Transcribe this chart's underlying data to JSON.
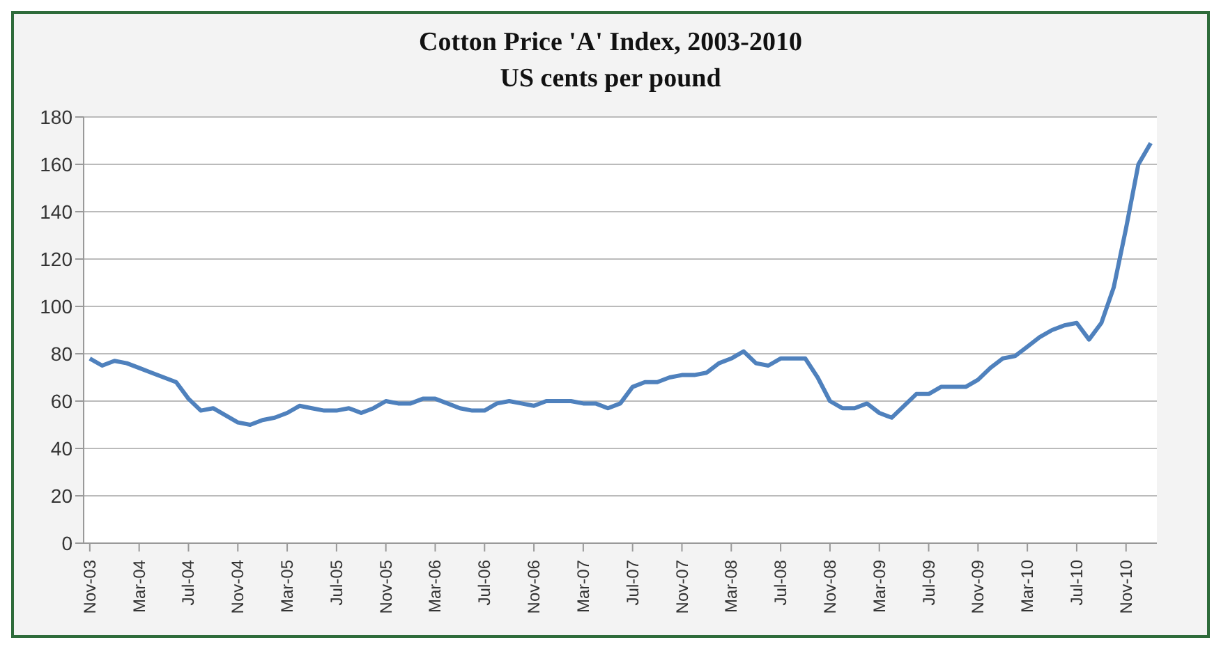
{
  "chart_data": {
    "type": "line",
    "title": "Cotton Price 'A' Index, 2003-2010",
    "subtitle": "US cents per pound",
    "categories": [
      "Nov-03",
      null,
      null,
      null,
      "Mar-04",
      null,
      null,
      null,
      "Jul-04",
      null,
      null,
      null,
      "Nov-04",
      null,
      null,
      null,
      "Mar-05",
      null,
      null,
      null,
      "Jul-05",
      null,
      null,
      null,
      "Nov-05",
      null,
      null,
      null,
      "Mar-06",
      null,
      null,
      null,
      "Jul-06",
      null,
      null,
      null,
      "Nov-06",
      null,
      null,
      null,
      "Mar-07",
      null,
      null,
      null,
      "Jul-07",
      null,
      null,
      null,
      "Nov-07",
      null,
      null,
      null,
      "Mar-08",
      null,
      null,
      null,
      "Jul-08",
      null,
      null,
      null,
      "Nov-08",
      null,
      null,
      null,
      "Mar-09",
      null,
      null,
      null,
      "Jul-09",
      null,
      null,
      null,
      "Nov-09",
      null,
      null,
      null,
      "Mar-10",
      null,
      null,
      null,
      "Jul-10",
      null,
      null,
      null,
      "Nov-10",
      null,
      null
    ],
    "series": [
      {
        "color": "#4f81bd",
        "values": [
          78,
          75,
          77,
          76,
          74,
          72,
          70,
          68,
          61,
          56,
          57,
          54,
          51,
          50,
          52,
          53,
          55,
          58,
          57,
          56,
          56,
          57,
          55,
          57,
          60,
          59,
          59,
          61,
          61,
          59,
          57,
          56,
          56,
          59,
          60,
          59,
          58,
          60,
          60,
          60,
          59,
          59,
          57,
          59,
          66,
          68,
          68,
          70,
          71,
          71,
          72,
          76,
          78,
          81,
          76,
          75,
          78,
          78,
          78,
          70,
          60,
          57,
          57,
          59,
          55,
          53,
          58,
          63,
          63,
          66,
          66,
          66,
          69,
          74,
          78,
          79,
          83,
          87,
          90,
          92,
          93,
          86,
          93,
          108,
          133,
          160,
          169
        ]
      }
    ],
    "ylim": [
      0,
      180
    ],
    "yticks": [
      0,
      20,
      40,
      60,
      80,
      100,
      120,
      140,
      160,
      180
    ],
    "grid": "y",
    "legend": false,
    "marker": "none",
    "line_style": "solid"
  }
}
